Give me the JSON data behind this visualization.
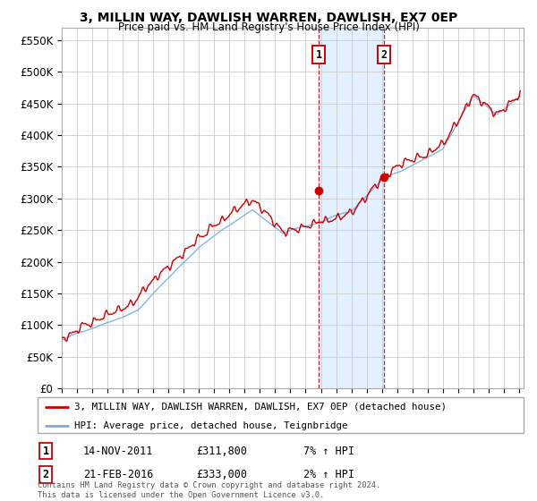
{
  "title": "3, MILLIN WAY, DAWLISH WARREN, DAWLISH, EX7 0EP",
  "subtitle": "Price paid vs. HM Land Registry's House Price Index (HPI)",
  "legend_line1": "3, MILLIN WAY, DAWLISH WARREN, DAWLISH, EX7 0EP (detached house)",
  "legend_line2": "HPI: Average price, detached house, Teignbridge",
  "annotation1_label": "1",
  "annotation1_date": "14-NOV-2011",
  "annotation1_price": "£311,800",
  "annotation1_hpi": "7% ↑ HPI",
  "annotation2_label": "2",
  "annotation2_date": "21-FEB-2016",
  "annotation2_price": "£333,000",
  "annotation2_hpi": "2% ↑ HPI",
  "footnote": "Contains HM Land Registry data © Crown copyright and database right 2024.\nThis data is licensed under the Open Government Licence v3.0.",
  "red_color": "#cc0000",
  "blue_color": "#7aacdc",
  "annotation_color": "#cc0000",
  "span_color": "#ddeeff",
  "bg_color": "#ffffff",
  "grid_color": "#cccccc",
  "ylim": [
    0,
    570000
  ],
  "yticks": [
    0,
    50000,
    100000,
    150000,
    200000,
    250000,
    300000,
    350000,
    400000,
    450000,
    500000,
    550000
  ],
  "xlim_start": 1995,
  "xlim_end": 2025.3,
  "sale1_x": 2011.87,
  "sale1_y": 311800,
  "sale2_x": 2016.13,
  "sale2_y": 333000
}
